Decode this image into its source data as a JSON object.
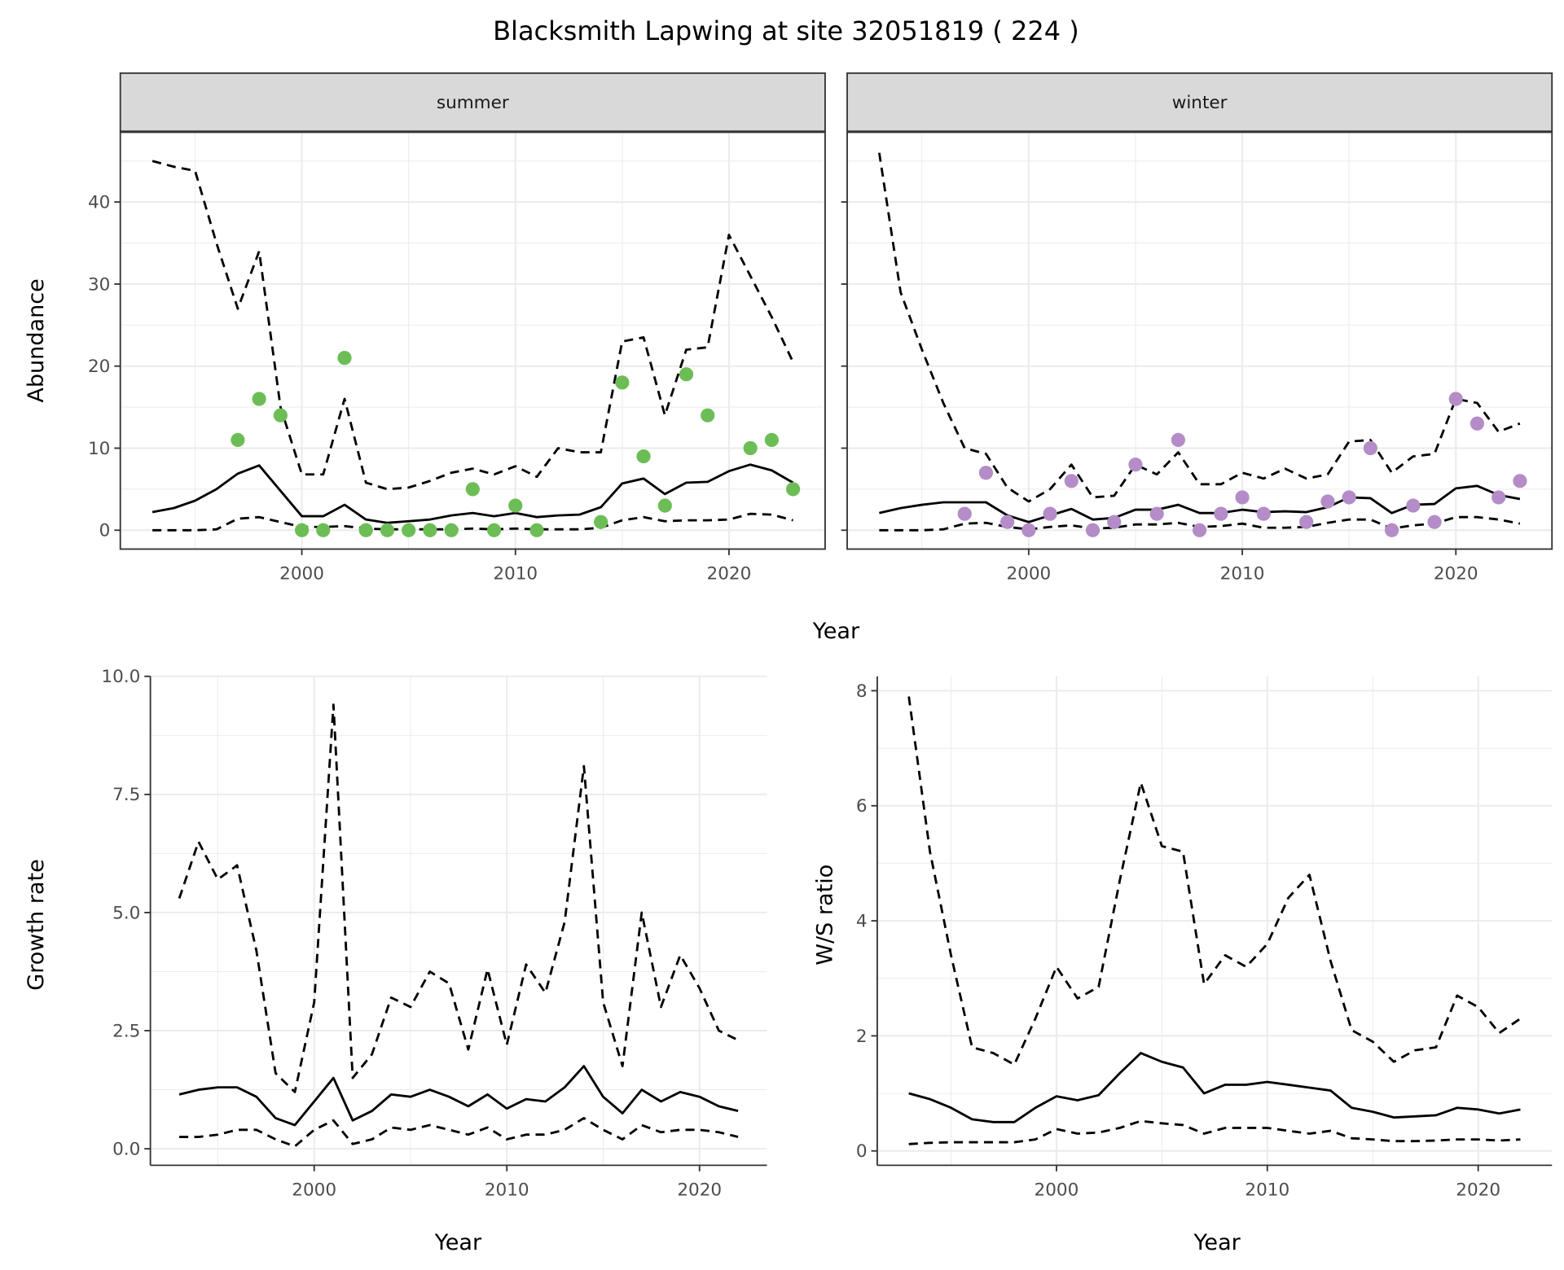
{
  "title": "Blacksmith Lapwing at site 32051819 ( 224 )",
  "colors": {
    "summer_points": "#6dbd57",
    "winter_points": "#b48cc8",
    "line": "#000000",
    "grid": "#ebebeb",
    "strip": "#d9d9d9"
  },
  "chart_data": [
    {
      "type": "line",
      "panel": "summer",
      "strip_label": "summer",
      "xlabel": "Year",
      "ylabel": "Abundance",
      "xlim": [
        1991.5,
        2024.5
      ],
      "ylim": [
        -2.3,
        48.5
      ],
      "xticks": [
        2000,
        2010,
        2020
      ],
      "xtick_labels": [
        "2000",
        "2010",
        "2020"
      ],
      "yticks": [
        0,
        10,
        20,
        30,
        40
      ],
      "ytick_labels": [
        "0",
        "10",
        "20",
        "30",
        "40"
      ],
      "grid": true,
      "x": [
        1993,
        1994,
        1995,
        1996,
        1997,
        1998,
        1999,
        2000,
        2001,
        2002,
        2003,
        2004,
        2005,
        2006,
        2007,
        2008,
        2009,
        2010,
        2011,
        2012,
        2013,
        2014,
        2015,
        2016,
        2017,
        2018,
        2019,
        2020,
        2021,
        2022,
        2023
      ],
      "series": [
        {
          "name": "mean",
          "style": "solid",
          "values": [
            2.2,
            2.7,
            3.6,
            5.0,
            6.9,
            7.9,
            4.8,
            1.7,
            1.7,
            3.1,
            1.3,
            0.9,
            1.1,
            1.3,
            1.8,
            2.1,
            1.7,
            2.1,
            1.6,
            1.8,
            1.9,
            2.8,
            5.7,
            6.3,
            4.4,
            5.8,
            5.9,
            7.2,
            8.0,
            7.3,
            5.8
          ]
        },
        {
          "name": "upper",
          "style": "dashed",
          "values": [
            45,
            44.3,
            43.8,
            35,
            27,
            34,
            15,
            6.8,
            6.8,
            16,
            5.8,
            5,
            5.2,
            6,
            7,
            7.5,
            6.8,
            7.8,
            6.5,
            10,
            9.5,
            9.5,
            23,
            23.5,
            14,
            22,
            22.3,
            36,
            31,
            26,
            20.5
          ]
        },
        {
          "name": "lower",
          "style": "dashed",
          "values": [
            0,
            0,
            0,
            0.1,
            1.4,
            1.6,
            1.0,
            0.4,
            0.4,
            0.5,
            0.2,
            0.1,
            0.1,
            0.1,
            0.1,
            0.2,
            0.1,
            0.2,
            0.1,
            0.1,
            0.1,
            0.3,
            1.2,
            1.6,
            1.1,
            1.2,
            1.2,
            1.3,
            2.0,
            1.9,
            1.2
          ]
        }
      ],
      "points": {
        "x": [
          1997,
          1998,
          1999,
          2000,
          2001,
          2002,
          2003,
          2004,
          2005,
          2006,
          2007,
          2008,
          2009,
          2010,
          2011,
          2014,
          2015,
          2016,
          2017,
          2018,
          2019,
          2021,
          2022,
          2023
        ],
        "y": [
          11,
          16,
          14,
          0,
          0,
          21,
          0,
          0,
          0,
          0,
          0,
          5,
          0,
          3,
          0,
          1,
          18,
          9,
          3,
          19,
          14,
          10,
          11,
          5
        ]
      }
    },
    {
      "type": "line",
      "panel": "winter",
      "strip_label": "winter",
      "xlabel": "Year",
      "ylabel": "Abundance",
      "xlim": [
        1991.5,
        2024.5
      ],
      "ylim": [
        -2.3,
        48.5
      ],
      "xticks": [
        2000,
        2010,
        2020
      ],
      "xtick_labels": [
        "2000",
        "2010",
        "2020"
      ],
      "yticks": [
        0,
        10,
        20,
        30,
        40
      ],
      "grid": true,
      "x": [
        1993,
        1994,
        1995,
        1996,
        1997,
        1998,
        1999,
        2000,
        2001,
        2002,
        2003,
        2004,
        2005,
        2006,
        2007,
        2008,
        2009,
        2010,
        2011,
        2012,
        2013,
        2014,
        2015,
        2016,
        2017,
        2018,
        2019,
        2020,
        2021,
        2022,
        2023
      ],
      "series": [
        {
          "name": "mean",
          "style": "solid",
          "values": [
            2.1,
            2.7,
            3.1,
            3.4,
            3.4,
            3.4,
            1.8,
            1.0,
            1.8,
            2.6,
            1.3,
            1.5,
            2.5,
            2.5,
            3.1,
            2.1,
            2.1,
            2.5,
            2.2,
            2.3,
            2.2,
            2.8,
            4.0,
            3.9,
            2.1,
            3.1,
            3.2,
            5.1,
            5.4,
            4.3,
            3.8
          ]
        },
        {
          "name": "upper",
          "style": "dashed",
          "values": [
            46,
            29,
            22,
            15.5,
            10,
            9.3,
            5.2,
            3.5,
            5,
            8,
            4,
            4.2,
            8,
            6.8,
            9.5,
            5.6,
            5.6,
            7,
            6.3,
            7.5,
            6.3,
            6.8,
            10.8,
            11,
            7,
            9,
            9.3,
            16,
            15.5,
            12,
            13
          ]
        },
        {
          "name": "lower",
          "style": "dashed",
          "values": [
            0,
            0,
            0,
            0.1,
            0.8,
            0.9,
            0.4,
            0.1,
            0.4,
            0.6,
            0.2,
            0.3,
            0.7,
            0.7,
            0.9,
            0.4,
            0.5,
            0.8,
            0.3,
            0.3,
            0.4,
            0.9,
            1.3,
            1.3,
            0.2,
            0.6,
            0.8,
            1.6,
            1.6,
            1.3,
            0.8
          ]
        }
      ],
      "points": {
        "x": [
          1997,
          1998,
          1999,
          2000,
          2001,
          2002,
          2003,
          2004,
          2005,
          2006,
          2007,
          2008,
          2009,
          2010,
          2011,
          2013,
          2014,
          2015,
          2016,
          2017,
          2018,
          2019,
          2020,
          2021,
          2022,
          2023
        ],
        "y": [
          2,
          7,
          1,
          0,
          2,
          6,
          0,
          1,
          8,
          2,
          11,
          0,
          2,
          4,
          2,
          1,
          3.5,
          4,
          10,
          0,
          3,
          1,
          16,
          13,
          4,
          6
        ]
      }
    },
    {
      "type": "line",
      "panel": "growth",
      "xlabel": "Year",
      "ylabel": "Growth rate",
      "xlim": [
        1991.5,
        2023.5
      ],
      "ylim": [
        -0.35,
        10.0
      ],
      "xticks": [
        2000,
        2010,
        2020
      ],
      "xtick_labels": [
        "2000",
        "2010",
        "2020"
      ],
      "yticks": [
        0,
        2.5,
        5,
        7.5,
        10
      ],
      "ytick_labels": [
        "0.0",
        "2.5",
        "5.0",
        "7.5",
        "10.0"
      ],
      "grid": true,
      "x": [
        1993,
        1994,
        1995,
        1996,
        1997,
        1998,
        1999,
        2000,
        2001,
        2002,
        2003,
        2004,
        2005,
        2006,
        2007,
        2008,
        2009,
        2010,
        2011,
        2012,
        2013,
        2014,
        2015,
        2016,
        2017,
        2018,
        2019,
        2020,
        2021,
        2022
      ],
      "series": [
        {
          "name": "mean",
          "style": "solid",
          "values": [
            1.15,
            1.25,
            1.3,
            1.3,
            1.1,
            0.65,
            0.5,
            1.0,
            1.5,
            0.6,
            0.8,
            1.15,
            1.1,
            1.25,
            1.1,
            0.9,
            1.15,
            0.85,
            1.05,
            1.0,
            1.3,
            1.75,
            1.1,
            0.75,
            1.25,
            1.0,
            1.2,
            1.1,
            0.9,
            0.8
          ]
        },
        {
          "name": "upper",
          "style": "dashed",
          "values": [
            5.3,
            6.5,
            5.7,
            6.0,
            4.2,
            1.6,
            1.2,
            3.1,
            9.4,
            1.5,
            2.0,
            3.2,
            3.0,
            3.75,
            3.5,
            2.1,
            3.8,
            2.2,
            3.9,
            3.3,
            4.8,
            8.1,
            3.1,
            1.75,
            5.0,
            3.0,
            4.1,
            3.4,
            2.5,
            2.3
          ]
        },
        {
          "name": "lower",
          "style": "dashed",
          "values": [
            0.25,
            0.25,
            0.3,
            0.4,
            0.4,
            0.2,
            0.05,
            0.4,
            0.6,
            0.1,
            0.2,
            0.45,
            0.4,
            0.5,
            0.4,
            0.3,
            0.45,
            0.2,
            0.3,
            0.3,
            0.4,
            0.65,
            0.4,
            0.2,
            0.5,
            0.35,
            0.4,
            0.4,
            0.35,
            0.25
          ]
        }
      ]
    },
    {
      "type": "line",
      "panel": "ratio",
      "xlabel": "Year",
      "ylabel": "W/S ratio",
      "xlim": [
        1991.5,
        2023.5
      ],
      "ylim": [
        -0.25,
        8.25
      ],
      "xticks": [
        2000,
        2010,
        2020
      ],
      "xtick_labels": [
        "2000",
        "2010",
        "2020"
      ],
      "yticks": [
        0,
        2,
        4,
        6,
        8
      ],
      "ytick_labels": [
        "0",
        "2",
        "4",
        "6",
        "8"
      ],
      "grid": true,
      "x": [
        1993,
        1994,
        1995,
        1996,
        1997,
        1998,
        1999,
        2000,
        2001,
        2002,
        2003,
        2004,
        2005,
        2006,
        2007,
        2008,
        2009,
        2010,
        2011,
        2012,
        2013,
        2014,
        2015,
        2016,
        2017,
        2018,
        2019,
        2020,
        2021,
        2022
      ],
      "series": [
        {
          "name": "mean",
          "style": "solid",
          "values": [
            1.0,
            0.9,
            0.75,
            0.55,
            0.5,
            0.5,
            0.75,
            0.95,
            0.88,
            0.97,
            1.35,
            1.7,
            1.55,
            1.45,
            1.0,
            1.15,
            1.15,
            1.2,
            1.15,
            1.1,
            1.05,
            0.75,
            0.68,
            0.58,
            0.6,
            0.62,
            0.75,
            0.72,
            0.65,
            0.72
          ]
        },
        {
          "name": "upper",
          "style": "dashed",
          "values": [
            7.9,
            5.2,
            3.4,
            1.8,
            1.7,
            1.5,
            2.3,
            3.2,
            2.65,
            2.85,
            4.7,
            6.4,
            5.3,
            5.2,
            2.9,
            3.4,
            3.2,
            3.6,
            4.4,
            4.8,
            3.3,
            2.1,
            1.9,
            1.55,
            1.75,
            1.8,
            2.7,
            2.5,
            2.05,
            2.3
          ]
        },
        {
          "name": "lower",
          "style": "dashed",
          "values": [
            0.12,
            0.14,
            0.15,
            0.15,
            0.15,
            0.15,
            0.2,
            0.38,
            0.3,
            0.32,
            0.4,
            0.52,
            0.48,
            0.45,
            0.3,
            0.4,
            0.4,
            0.4,
            0.35,
            0.3,
            0.35,
            0.22,
            0.2,
            0.17,
            0.17,
            0.18,
            0.2,
            0.2,
            0.18,
            0.2
          ]
        }
      ]
    }
  ]
}
